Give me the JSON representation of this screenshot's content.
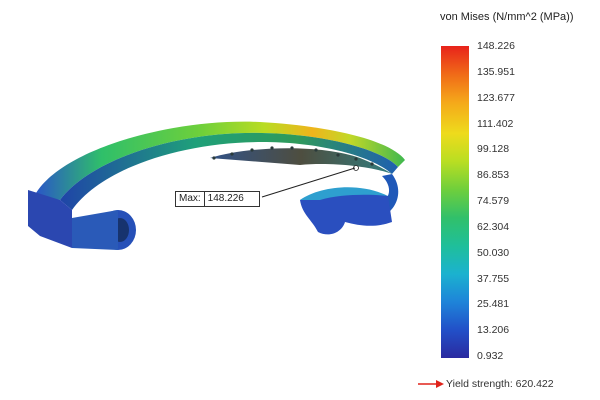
{
  "legend": {
    "title": "von Mises (N/mm^2 (MPa))",
    "ticks": [
      "148.226",
      "135.951",
      "123.677",
      "111.402",
      "99.128",
      "86.853",
      "74.579",
      "62.304",
      "50.030",
      "37.755",
      "25.481",
      "13.206",
      "0.932"
    ]
  },
  "annotation": {
    "max_label": "Max:",
    "max_value": "148.226"
  },
  "yield": {
    "text": "Yield strength: 620.422",
    "arrow_color": "#e0231b"
  },
  "colors": {
    "max": "#e8231b",
    "min": "#2a2aa0"
  }
}
